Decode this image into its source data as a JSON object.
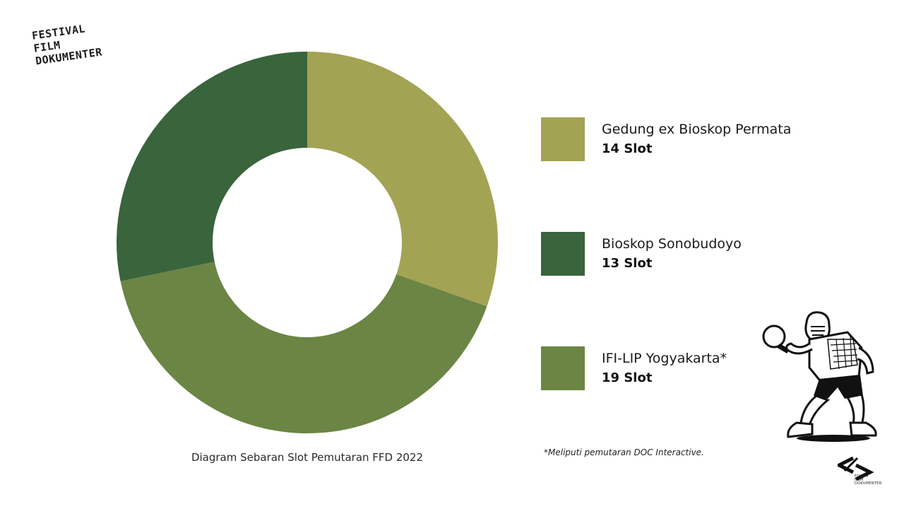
{
  "logo": {
    "line1": "FESTIVAL",
    "line2": "FILM",
    "line3": "DOKUMENTER"
  },
  "chart_data": {
    "type": "pie",
    "variant": "donut",
    "caption": "Diagram Sebaran Slot Pemutaran FFD 2022",
    "series": [
      {
        "label": "Gedung ex Bioskop Permata",
        "value": 14,
        "value_label": "14 Slot",
        "color": "#a3a354"
      },
      {
        "label": "IFI-LIP Yogyakarta*",
        "value": 19,
        "value_label": "19 Slot",
        "color": "#6b8544"
      },
      {
        "label": "Bioskop Sonobudoyo",
        "value": 13,
        "value_label": "13 Slot",
        "color": "#3a643c"
      }
    ],
    "legend_order": [
      0,
      2,
      1
    ],
    "legend_placement": "right"
  },
  "footnote": "*Meliputi pemutaran DOC Interactive.",
  "forum_mark": {
    "line1": "FORUM",
    "line2": "FILM",
    "line3": "DOKUMENTER"
  }
}
